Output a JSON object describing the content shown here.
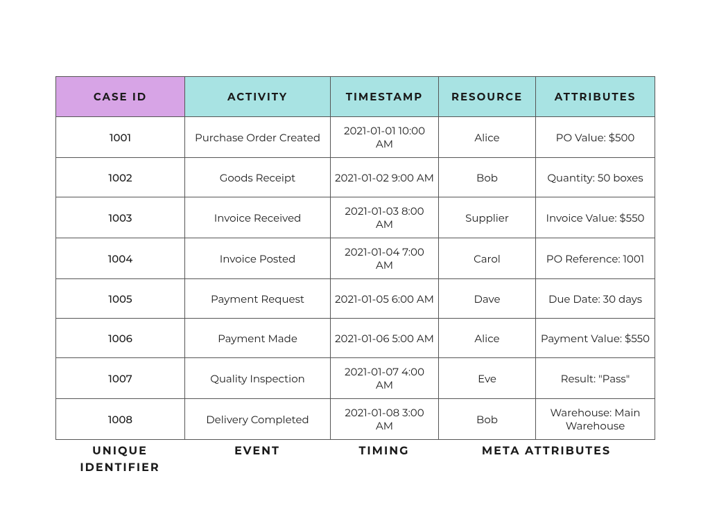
{
  "table": {
    "header_bg_first": "#d7a4e6",
    "header_bg_rest": "#a8e3e3",
    "border_color": "#555555",
    "text_color": "#1a1a1a",
    "columns": [
      {
        "label": "CASE ID",
        "class": "col-caseid"
      },
      {
        "label": "ACTIVITY",
        "class": "col-activity"
      },
      {
        "label": "TIMESTAMP",
        "class": "col-timestamp"
      },
      {
        "label": "RESOURCE",
        "class": "col-resource"
      },
      {
        "label": "ATTRIBUTES",
        "class": "col-attributes"
      }
    ],
    "rows": [
      {
        "case_id": "1001",
        "activity": "Purchase Order Created",
        "timestamp": "2021-01-01 10:00 AM",
        "resource": "Alice",
        "attributes": "PO Value: $500"
      },
      {
        "case_id": "1002",
        "activity": "Goods Receipt",
        "timestamp": "2021-01-02 9:00 AM",
        "resource": "Bob",
        "attributes": "Quantity: 50 boxes"
      },
      {
        "case_id": "1003",
        "activity": "Invoice Received",
        "timestamp": "2021-01-03 8:00 AM",
        "resource": "Supplier",
        "attributes": "Invoice Value: $550"
      },
      {
        "case_id": "1004",
        "activity": "Invoice Posted",
        "timestamp": "2021-01-04 7:00 AM",
        "resource": "Carol",
        "attributes": "PO Reference: 1001"
      },
      {
        "case_id": "1005",
        "activity": "Payment Request",
        "timestamp": "2021-01-05 6:00 AM",
        "resource": "Dave",
        "attributes": "Due Date: 30 days"
      },
      {
        "case_id": "1006",
        "activity": "Payment Made",
        "timestamp": "2021-01-06 5:00 AM",
        "resource": "Alice",
        "attributes": "Payment Value: $550"
      },
      {
        "case_id": "1007",
        "activity": "Quality Inspection",
        "timestamp": "2021-01-07 4:00 AM",
        "resource": "Eve",
        "attributes": "Result: \"Pass\""
      },
      {
        "case_id": "1008",
        "activity": "Delivery Completed",
        "timestamp": "2021-01-08 3:00 AM",
        "resource": "Bob",
        "attributes": "Warehouse: Main Warehouse"
      }
    ]
  },
  "footer": {
    "labels": [
      "UNIQUE IDENTIFIER",
      "EVENT",
      "TIMING",
      "META ATTRIBUTES"
    ]
  }
}
